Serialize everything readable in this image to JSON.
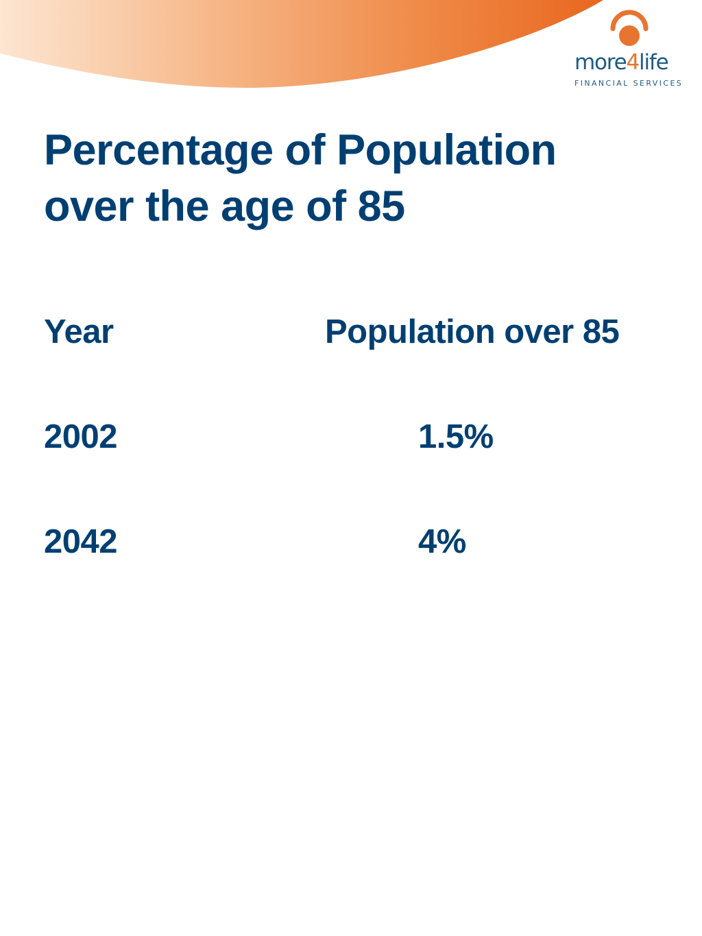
{
  "brand": {
    "wordmark_prefix": "more",
    "wordmark_digit": "4",
    "wordmark_suffix": "life",
    "tagline": "FINANCIAL SERVICES",
    "colors": {
      "navy": "#003f72",
      "logo_blue": "#1d5a84",
      "orange": "#e8752f",
      "peach": "#fbd7b8"
    }
  },
  "slide": {
    "title_line1": "Percentage of Population",
    "title_line2": "over the age of 85"
  },
  "table": {
    "headers": {
      "year": "Year",
      "population": "Population over 85"
    },
    "rows": [
      {
        "year": "2002",
        "population": "1.5%"
      },
      {
        "year": "2042",
        "population": "4%"
      }
    ]
  }
}
